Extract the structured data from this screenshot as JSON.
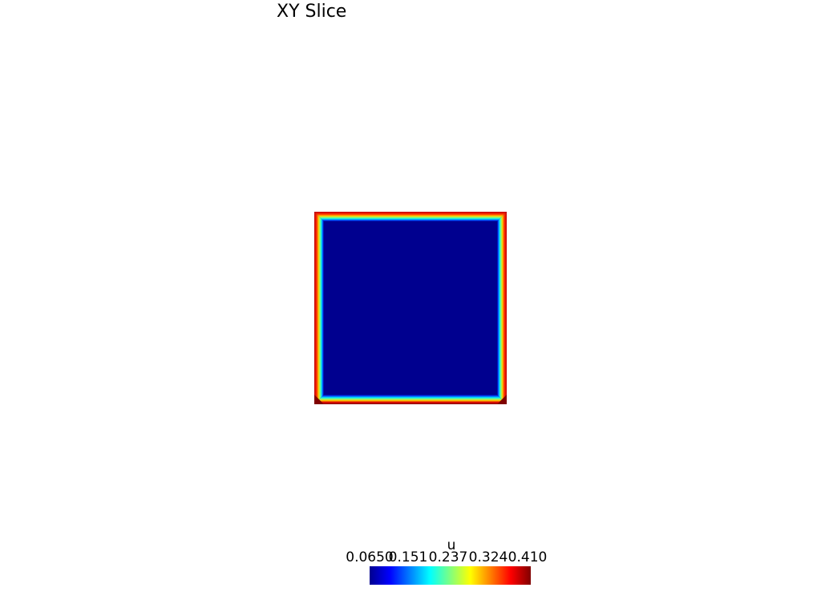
{
  "title": "XY Slice",
  "field": {
    "name": "u",
    "min": 0.065,
    "max": 0.41,
    "interior_value": 0.065,
    "boundary_value": 0.41
  },
  "colorbar": {
    "title": "u",
    "colormap": "jet",
    "tick_labels": [
      "0.0650",
      "0.151",
      "0.237",
      "0.324",
      "0.410"
    ]
  },
  "colors": {
    "interior": "#00008f",
    "boundary": "#c00000",
    "dark_red": "#800000"
  }
}
